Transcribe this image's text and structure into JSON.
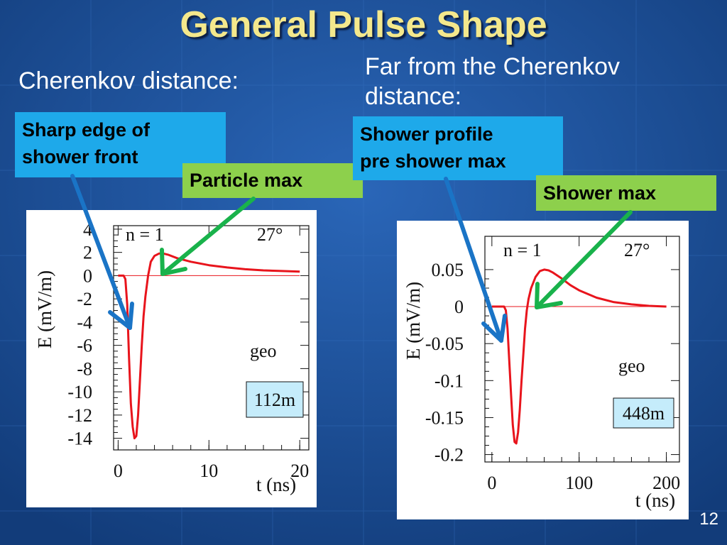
{
  "slide": {
    "title": "General Pulse Shape",
    "page_number": "12",
    "accent_cyan": "#1ea9ea",
    "accent_green": "#8dd04c",
    "background": "#1a4f9a"
  },
  "left": {
    "heading": "Cherenkov distance:",
    "box_edge": [
      "Sharp edge of",
      "shower front"
    ],
    "box_peak": "Particle max"
  },
  "right": {
    "heading": [
      "Far from the Cherenkov",
      "distance:"
    ],
    "box_profile": [
      "Shower profile",
      "pre shower max"
    ],
    "box_peak": "Shower max"
  },
  "chart_data": [
    {
      "type": "line",
      "xlabel": "t (ns)",
      "ylabel": "E (mV/m)",
      "xlim": [
        -0.5,
        21
      ],
      "ylim": [
        -15,
        4.3
      ],
      "x_ticks": [
        0,
        10,
        20
      ],
      "y_ticks": [
        4,
        2,
        0,
        -2,
        -4,
        -6,
        -8,
        -10,
        -12,
        -14
      ],
      "annotations": {
        "n": "n = 1",
        "angle": "27°",
        "label": "geo",
        "distance": "112m"
      },
      "series": [
        {
          "color": "#e8141c",
          "x": [
            0,
            0.6,
            0.8,
            1.0,
            1.2,
            1.4,
            1.6,
            1.8,
            2.0,
            2.2,
            2.4,
            2.6,
            2.8,
            3.0,
            3.3,
            3.6,
            4.0,
            4.5,
            5.0,
            5.5,
            6.5,
            8.0,
            10,
            12,
            14,
            16,
            18,
            20
          ],
          "y": [
            0,
            0,
            -0.3,
            -2.5,
            -7,
            -11,
            -13,
            -14,
            -13.8,
            -12,
            -9,
            -6,
            -3.5,
            -1.8,
            0,
            1.2,
            1.7,
            1.9,
            1.9,
            1.8,
            1.5,
            1.2,
            0.9,
            0.7,
            0.55,
            0.45,
            0.4,
            0.35
          ]
        },
        {
          "color": "#e8141c",
          "x": [
            0,
            20
          ],
          "y": [
            0,
            0
          ]
        }
      ]
    },
    {
      "type": "line",
      "xlabel": "t (ns)",
      "ylabel": "E (mV/m)",
      "xlim": [
        -8,
        215
      ],
      "ylim": [
        -0.21,
        0.095
      ],
      "x_ticks": [
        0,
        100,
        200
      ],
      "y_ticks": [
        0.05,
        0,
        -0.05,
        -0.1,
        -0.15,
        -0.2
      ],
      "annotations": {
        "n": "n = 1",
        "angle": "27°",
        "label": "geo",
        "distance": "448m"
      },
      "series": [
        {
          "color": "#e8141c",
          "x": [
            0,
            14,
            16,
            18,
            20,
            22,
            24,
            26,
            28,
            30,
            32,
            34,
            36,
            38,
            40,
            42,
            45,
            50,
            55,
            60,
            65,
            70,
            80,
            90,
            100,
            120,
            140,
            160,
            180,
            200
          ],
          "y": [
            0,
            0,
            -0.005,
            -0.03,
            -0.075,
            -0.12,
            -0.16,
            -0.183,
            -0.185,
            -0.17,
            -0.14,
            -0.1,
            -0.065,
            -0.03,
            -0.005,
            0.01,
            0.025,
            0.04,
            0.048,
            0.05,
            0.049,
            0.046,
            0.038,
            0.029,
            0.022,
            0.012,
            0.006,
            0.003,
            0.001,
            0
          ]
        },
        {
          "color": "#e8141c",
          "x": [
            0,
            200
          ],
          "y": [
            0,
            0
          ]
        }
      ]
    }
  ]
}
